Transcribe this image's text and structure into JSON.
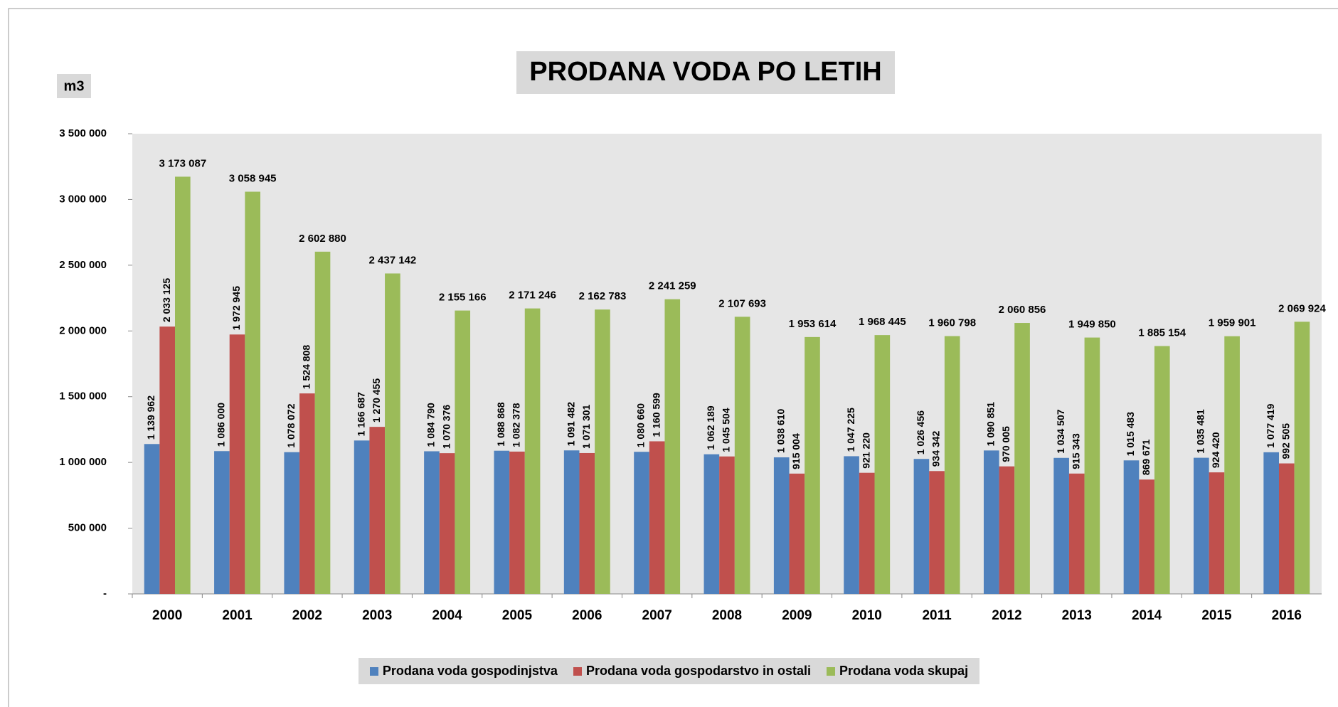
{
  "chart_data": {
    "type": "bar",
    "title": "PRODANA VODA PO LETIH",
    "y_label": "m3",
    "categories": [
      "2000",
      "2001",
      "2002",
      "2003",
      "2004",
      "2005",
      "2006",
      "2007",
      "2008",
      "2009",
      "2010",
      "2011",
      "2012",
      "2013",
      "2014",
      "2015",
      "2016"
    ],
    "series": [
      {
        "name": "Prodana voda gospodinjstva",
        "color": "#4f81bd",
        "values": [
          1139962,
          1086000,
          1078072,
          1166687,
          1084790,
          1088868,
          1091482,
          1080660,
          1062189,
          1038610,
          1047225,
          1026456,
          1090851,
          1034507,
          1015483,
          1035481,
          1077419
        ],
        "value_labels": [
          "1 139 962",
          "1 086 000",
          "1 078 072",
          "1 166 687",
          "1 084 790",
          "1 088 868",
          "1 091 482",
          "1 080 660",
          "1 062 189",
          "1 038 610",
          "1 047 225",
          "1 026 456",
          "1 090 851",
          "1 034 507",
          "1 015 483",
          "1 035 481",
          "1 077 419"
        ]
      },
      {
        "name": "Prodana voda gospodarstvo in ostali",
        "color": "#c0504d",
        "values": [
          2033125,
          1972945,
          1524808,
          1270455,
          1070376,
          1082378,
          1071301,
          1160599,
          1045504,
          915004,
          921220,
          934342,
          970005,
          915343,
          869671,
          924420,
          992505
        ],
        "value_labels": [
          "2 033 125",
          "1 972 945",
          "1 524 808",
          "1 270 455",
          "1 070 376",
          "1 082 378",
          "1 071 301",
          "1 160 599",
          "1 045 504",
          "915 004",
          "921 220",
          "934 342",
          "970 005",
          "915 343",
          "869 671",
          "924 420",
          "992 505"
        ]
      },
      {
        "name": "Prodana voda skupaj",
        "color": "#9bbb59",
        "values": [
          3173087,
          3058945,
          2602880,
          2437142,
          2155166,
          2171246,
          2162783,
          2241259,
          2107693,
          1953614,
          1968445,
          1960798,
          2060856,
          1949850,
          1885154,
          1959901,
          2069924
        ],
        "value_labels": [
          "3 173 087",
          "3 058 945",
          "2 602 880",
          "2 437 142",
          "2 155 166",
          "2 171 246",
          "2 162 783",
          "2 241 259",
          "2 107 693",
          "1 953 614",
          "1 968 445",
          "1 960 798",
          "2 060 856",
          "1 949 850",
          "1 885 154",
          "1 959 901",
          "2 069 924"
        ]
      }
    ],
    "ylim": [
      0,
      3500000
    ],
    "yticks": [
      {
        "value": 0,
        "label": "-"
      },
      {
        "value": 500000,
        "label": "500 000"
      },
      {
        "value": 1000000,
        "label": "1 000 000"
      },
      {
        "value": 1500000,
        "label": "1 500 000"
      },
      {
        "value": 2000000,
        "label": "2 000 000"
      },
      {
        "value": 2500000,
        "label": "2 500 000"
      },
      {
        "value": 3000000,
        "label": "3 000 000"
      },
      {
        "value": 3500000,
        "label": "3 500 000"
      }
    ],
    "legend": "bottom"
  }
}
